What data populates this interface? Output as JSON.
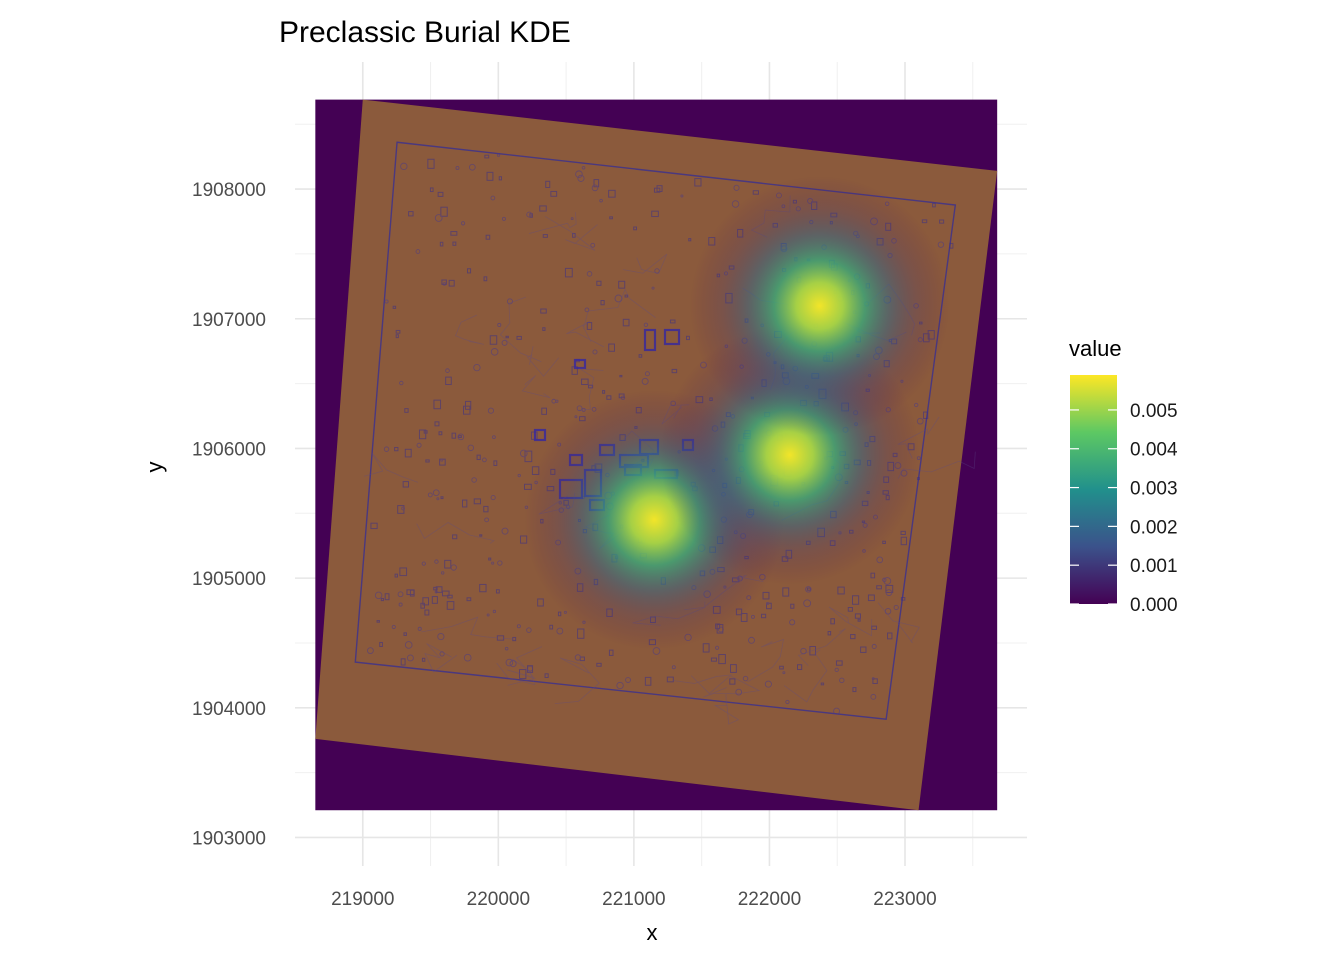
{
  "chart_data": {
    "type": "heatmap",
    "title": "Preclassic Burial KDE",
    "xlabel": "x",
    "ylabel": "y",
    "xlim": [
      218500,
      223900
    ],
    "ylim": [
      1902780,
      1908980
    ],
    "x_ticks": [
      219000,
      220000,
      221000,
      222000,
      223000
    ],
    "x_tick_labels": [
      "219000",
      "220000",
      "221000",
      "222000",
      "223000"
    ],
    "y_ticks": [
      1903000,
      1904000,
      1905000,
      1906000,
      1907000,
      1908000
    ],
    "y_tick_labels": [
      "1903000",
      "1904000",
      "1905000",
      "1906000",
      "1907000",
      "1908000"
    ],
    "grid": true,
    "raster_extent": {
      "x": [
        218650,
        223680
      ],
      "y": [
        1903210,
        1908690
      ]
    },
    "basemap": {
      "description_color": "#8b5a3c",
      "corners": [
        [
          219000,
          1908690
        ],
        [
          223680,
          1908140
        ],
        [
          223100,
          1903210
        ],
        [
          218650,
          1903760
        ]
      ]
    },
    "density_peaks": [
      {
        "x": 221150,
        "y": 1905450,
        "value": 0.0058
      },
      {
        "x": 222150,
        "y": 1905950,
        "value": 0.0058
      },
      {
        "x": 222370,
        "y": 1907100,
        "value": 0.0058
      }
    ],
    "legend": {
      "title": "value",
      "placement": "right",
      "ticks": [
        0.0,
        0.001,
        0.002,
        0.003,
        0.004,
        0.005
      ],
      "tick_labels": [
        "0.000",
        "0.001",
        "0.002",
        "0.003",
        "0.004",
        "0.005"
      ],
      "range": [
        0,
        0.0059
      ],
      "colormap": "viridis",
      "colors": [
        "#440154",
        "#3b528b",
        "#21908c",
        "#5dc863",
        "#fde725"
      ]
    },
    "background_color": "#440154"
  }
}
